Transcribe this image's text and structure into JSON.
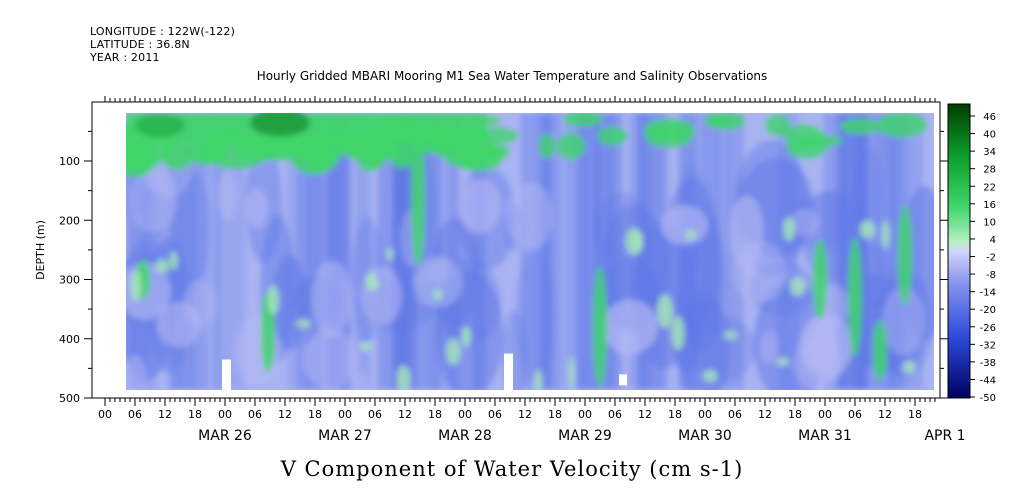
{
  "header": {
    "longitude": "LONGITUDE : 122W(-122)",
    "latitude": "LATITUDE : 36.8N",
    "year": "YEAR : 2011"
  },
  "chart_data": {
    "type": "heatmap",
    "title": "Hourly Gridded MBARI Mooring M1 Sea Water Temperature and Salinity Observations",
    "xlabel": "V Component of Water Velocity (cm s-1)",
    "ylabel": "DEPTH (m)",
    "ylim": [
      500,
      0
    ],
    "y_ticks": [
      100,
      200,
      300,
      400,
      500
    ],
    "hour_ticks": [
      "00",
      "06",
      "12",
      "18",
      "00",
      "06",
      "12",
      "18",
      "00",
      "06",
      "12",
      "18",
      "00",
      "06",
      "12",
      "18",
      "00",
      "06",
      "12",
      "18",
      "00",
      "06",
      "12",
      "18",
      "00",
      "06",
      "12",
      "18"
    ],
    "date_labels": [
      "MAR 26",
      "MAR 27",
      "MAR 28",
      "MAR 29",
      "MAR 30",
      "MAR 31",
      "APR  1"
    ],
    "colorbar_labels": [
      "46",
      "40",
      "34",
      "28",
      "22",
      "16",
      "10",
      "4",
      "-2",
      "-8",
      "-14",
      "-20",
      "-26",
      "-32",
      "-38",
      "-44",
      "-50"
    ],
    "colorbar_range": [
      -50,
      50
    ],
    "data_depth_range_m": [
      20,
      485
    ],
    "data_start": "MAR 25 04",
    "colors": {
      "strong_positive": "#006400",
      "positive": "#3fd56a",
      "weak_positive": "#a8eab8",
      "weak_negative": "#b4b8f4",
      "negative": "#5f78e6",
      "strong_negative": "#000080"
    }
  }
}
